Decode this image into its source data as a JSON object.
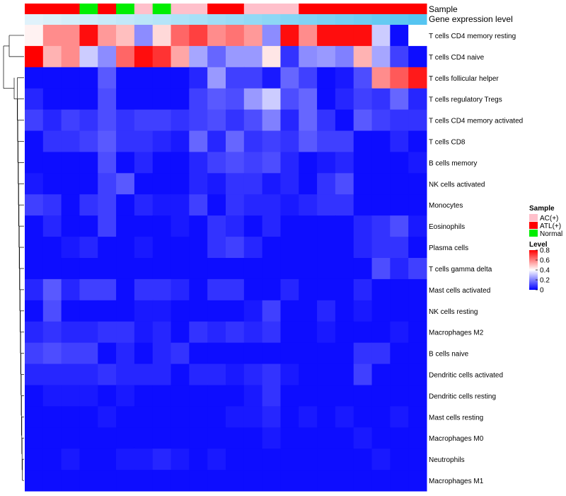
{
  "chart_data": {
    "type": "heatmap",
    "annotation_titles": [
      "Sample",
      "Gene expression level"
    ],
    "rows": [
      "T cells CD4 memory resting",
      "T cells CD4 naive",
      "T cells follicular helper",
      "T cells regulatory  Tregs",
      "T cells CD4 memory activated",
      "T cells CD8",
      "B cells memory",
      "NK cells activated",
      "Monocytes",
      "Eosinophils",
      "Plasma cells",
      "T cells gamma delta",
      "Mast cells activated",
      "NK cells resting",
      "Macrophages M2",
      "B cells naive",
      "Dendritic cells activated",
      "Dendritic cells resting",
      "Mast cells resting",
      "Macrophages M0",
      "Neutrophils",
      "Macrophages M1"
    ],
    "sample_groups": [
      "ATL(+)",
      "ATL(+)",
      "ATL(+)",
      "Normal",
      "ATL(+)",
      "Normal",
      "AC(+)",
      "Normal",
      "AC(+)",
      "AC(+)",
      "ATL(+)",
      "ATL(+)",
      "AC(+)",
      "AC(+)",
      "AC(+)",
      "ATL(+)",
      "ATL(+)",
      "ATL(+)",
      "ATL(+)",
      "ATL(+)",
      "ATL(+)",
      "ATL(+)"
    ],
    "expression_level": [
      0.02,
      0.06,
      0.1,
      0.14,
      0.18,
      0.22,
      0.27,
      0.31,
      0.36,
      0.4,
      0.45,
      0.49,
      0.54,
      0.58,
      0.63,
      0.67,
      0.71,
      0.76,
      0.8,
      0.85,
      0.9,
      0.95
    ],
    "values": [
      [
        0.42,
        0.58,
        0.58,
        0.78,
        0.56,
        0.5,
        0.22,
        0.46,
        0.64,
        0.7,
        0.58,
        0.62,
        0.56,
        0.22,
        0.78,
        0.58,
        0.78,
        0.78,
        0.78,
        0.32,
        0.02,
        0.4
      ],
      [
        0.8,
        0.52,
        0.58,
        0.32,
        0.22,
        0.64,
        0.78,
        0.72,
        0.54,
        0.26,
        0.16,
        0.24,
        0.24,
        0.44,
        0.08,
        0.22,
        0.24,
        0.2,
        0.52,
        0.26,
        0.1,
        0.02
      ],
      [
        0.02,
        0.02,
        0.02,
        0.02,
        0.14,
        0.02,
        0.02,
        0.02,
        0.02,
        0.06,
        0.24,
        0.1,
        0.1,
        0.04,
        0.16,
        0.1,
        0.02,
        0.04,
        0.12,
        0.58,
        0.66,
        0.76
      ],
      [
        0.06,
        0.02,
        0.02,
        0.02,
        0.12,
        0.02,
        0.02,
        0.02,
        0.02,
        0.1,
        0.14,
        0.12,
        0.24,
        0.32,
        0.12,
        0.16,
        0.02,
        0.06,
        0.1,
        0.08,
        0.16,
        0.06
      ],
      [
        0.1,
        0.06,
        0.1,
        0.08,
        0.12,
        0.08,
        0.1,
        0.1,
        0.08,
        0.1,
        0.12,
        0.08,
        0.12,
        0.2,
        0.06,
        0.16,
        0.08,
        0.02,
        0.14,
        0.1,
        0.08,
        0.08
      ],
      [
        0.02,
        0.08,
        0.08,
        0.1,
        0.14,
        0.08,
        0.08,
        0.06,
        0.04,
        0.16,
        0.06,
        0.16,
        0.08,
        0.1,
        0.08,
        0.14,
        0.1,
        0.1,
        0.02,
        0.02,
        0.06,
        0.02
      ],
      [
        0.02,
        0.02,
        0.02,
        0.02,
        0.12,
        0.02,
        0.06,
        0.02,
        0.02,
        0.06,
        0.1,
        0.12,
        0.1,
        0.12,
        0.06,
        0.02,
        0.04,
        0.06,
        0.02,
        0.02,
        0.02,
        0.04
      ],
      [
        0.04,
        0.02,
        0.02,
        0.02,
        0.1,
        0.14,
        0.02,
        0.02,
        0.02,
        0.06,
        0.04,
        0.08,
        0.08,
        0.04,
        0.06,
        0.02,
        0.08,
        0.12,
        0.02,
        0.02,
        0.02,
        0.02
      ],
      [
        0.1,
        0.08,
        0.02,
        0.08,
        0.1,
        0.02,
        0.06,
        0.04,
        0.04,
        0.1,
        0.02,
        0.08,
        0.06,
        0.06,
        0.04,
        0.06,
        0.08,
        0.08,
        0.02,
        0.02,
        0.02,
        0.02
      ],
      [
        0.02,
        0.06,
        0.02,
        0.02,
        0.1,
        0.02,
        0.02,
        0.02,
        0.04,
        0.02,
        0.08,
        0.06,
        0.02,
        0.06,
        0.02,
        0.02,
        0.02,
        0.02,
        0.06,
        0.08,
        0.12,
        0.04
      ],
      [
        0.02,
        0.02,
        0.04,
        0.06,
        0.02,
        0.02,
        0.04,
        0.02,
        0.02,
        0.02,
        0.08,
        0.1,
        0.06,
        0.02,
        0.02,
        0.02,
        0.02,
        0.02,
        0.06,
        0.08,
        0.08,
        0.02
      ],
      [
        0.02,
        0.02,
        0.02,
        0.02,
        0.02,
        0.02,
        0.02,
        0.02,
        0.02,
        0.02,
        0.02,
        0.02,
        0.02,
        0.02,
        0.02,
        0.02,
        0.02,
        0.02,
        0.02,
        0.12,
        0.06,
        0.1
      ],
      [
        0.06,
        0.14,
        0.06,
        0.1,
        0.1,
        0.02,
        0.08,
        0.08,
        0.06,
        0.02,
        0.08,
        0.08,
        0.02,
        0.02,
        0.06,
        0.02,
        0.02,
        0.02,
        0.06,
        0.02,
        0.02,
        0.02
      ],
      [
        0.02,
        0.12,
        0.02,
        0.02,
        0.02,
        0.02,
        0.04,
        0.04,
        0.02,
        0.02,
        0.02,
        0.02,
        0.04,
        0.1,
        0.02,
        0.02,
        0.06,
        0.02,
        0.04,
        0.02,
        0.02,
        0.02
      ],
      [
        0.06,
        0.08,
        0.06,
        0.06,
        0.08,
        0.08,
        0.04,
        0.06,
        0.02,
        0.08,
        0.06,
        0.08,
        0.06,
        0.08,
        0.02,
        0.02,
        0.04,
        0.02,
        0.02,
        0.02,
        0.04,
        0.02
      ],
      [
        0.1,
        0.12,
        0.1,
        0.1,
        0.02,
        0.06,
        0.02,
        0.06,
        0.08,
        0.02,
        0.02,
        0.02,
        0.02,
        0.02,
        0.02,
        0.02,
        0.02,
        0.02,
        0.08,
        0.08,
        0.02,
        0.02
      ],
      [
        0.06,
        0.06,
        0.06,
        0.06,
        0.08,
        0.06,
        0.06,
        0.06,
        0.02,
        0.06,
        0.06,
        0.04,
        0.06,
        0.08,
        0.04,
        0.02,
        0.02,
        0.02,
        0.1,
        0.02,
        0.02,
        0.02
      ],
      [
        0.02,
        0.04,
        0.04,
        0.04,
        0.02,
        0.04,
        0.02,
        0.02,
        0.02,
        0.02,
        0.02,
        0.02,
        0.04,
        0.08,
        0.02,
        0.02,
        0.02,
        0.02,
        0.02,
        0.02,
        0.02,
        0.02
      ],
      [
        0.02,
        0.02,
        0.02,
        0.02,
        0.04,
        0.02,
        0.02,
        0.02,
        0.02,
        0.02,
        0.02,
        0.04,
        0.04,
        0.06,
        0.02,
        0.04,
        0.02,
        0.04,
        0.02,
        0.02,
        0.04,
        0.02
      ],
      [
        0.02,
        0.02,
        0.02,
        0.02,
        0.02,
        0.02,
        0.02,
        0.02,
        0.02,
        0.02,
        0.02,
        0.02,
        0.02,
        0.04,
        0.02,
        0.02,
        0.02,
        0.02,
        0.04,
        0.02,
        0.02,
        0.02
      ],
      [
        0.02,
        0.02,
        0.04,
        0.02,
        0.02,
        0.04,
        0.04,
        0.06,
        0.04,
        0.02,
        0.04,
        0.02,
        0.02,
        0.02,
        0.02,
        0.02,
        0.02,
        0.02,
        0.02,
        0.04,
        0.02,
        0.02
      ],
      [
        0.02,
        0.02,
        0.02,
        0.02,
        0.02,
        0.02,
        0.02,
        0.02,
        0.02,
        0.02,
        0.02,
        0.02,
        0.02,
        0.02,
        0.02,
        0.02,
        0.02,
        0.02,
        0.02,
        0.02,
        0.02,
        0.02
      ]
    ],
    "legend": {
      "sample_title": "Sample",
      "sample_entries": [
        {
          "label": "AC(+)",
          "color": "#ffc0cb"
        },
        {
          "label": "ATL(+)",
          "color": "#ff0000"
        },
        {
          "label": "Normal",
          "color": "#00ee00"
        }
      ],
      "level_title": "Level",
      "level_ticks": [
        "0.8",
        "0.6",
        "0.4",
        "0.2",
        "0"
      ],
      "level_tick_values": [
        0.8,
        0.6,
        0.4,
        0.2,
        0
      ],
      "level_range": [
        0,
        0.8
      ]
    },
    "colors": {
      "low": "#0000ff",
      "mid": "#ffffff",
      "high": "#ff0000",
      "expr_low": "#e3f3fb",
      "expr_high": "#4fc3f0"
    }
  }
}
